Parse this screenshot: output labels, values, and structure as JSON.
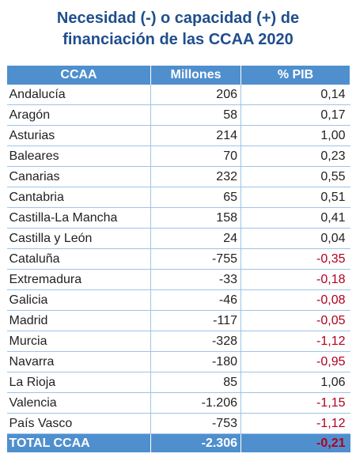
{
  "title": {
    "line1": "Necesidad (-) o capacidad (+) de",
    "line2": "financiación de las CCAA 2020"
  },
  "table": {
    "headers": [
      "CCAA",
      "Millones",
      "% PIB"
    ],
    "rows": [
      {
        "name": "Andalucía",
        "millones": "206",
        "pib": "0,14"
      },
      {
        "name": "Aragón",
        "millones": "58",
        "pib": "0,17"
      },
      {
        "name": "Asturias",
        "millones": "214",
        "pib": "1,00"
      },
      {
        "name": "Baleares",
        "millones": "70",
        "pib": "0,23"
      },
      {
        "name": "Canarias",
        "millones": "232",
        "pib": "0,55"
      },
      {
        "name": "Cantabria",
        "millones": "65",
        "pib": "0,51"
      },
      {
        "name": "Castilla-La Mancha",
        "millones": "158",
        "pib": "0,41"
      },
      {
        "name": "Castilla y León",
        "millones": "24",
        "pib": "0,04"
      },
      {
        "name": "Cataluña",
        "millones": "-755",
        "pib": "-0,35"
      },
      {
        "name": "Extremadura",
        "millones": "-33",
        "pib": "-0,18"
      },
      {
        "name": "Galicia",
        "millones": "-46",
        "pib": "-0,08"
      },
      {
        "name": "Madrid",
        "millones": "-117",
        "pib": "-0,05"
      },
      {
        "name": "Murcia",
        "millones": "-328",
        "pib": "-1,12"
      },
      {
        "name": "Navarra",
        "millones": "-180",
        "pib": "-0,95"
      },
      {
        "name": "La Rioja",
        "millones": "85",
        "pib": "1,06"
      },
      {
        "name": "Valencia",
        "millones": "-1.206",
        "pib": "-1,15"
      },
      {
        "name": "País Vasco",
        "millones": "-753",
        "pib": "-1,12"
      }
    ],
    "total": {
      "name": "TOTAL CCAA",
      "millones": "-2.306",
      "pib": "-0,21"
    }
  },
  "colors": {
    "title": "#1f4e8c",
    "header_bg": "#4f8fce",
    "negative": "#b00020",
    "grid": "#9fc3e7"
  }
}
